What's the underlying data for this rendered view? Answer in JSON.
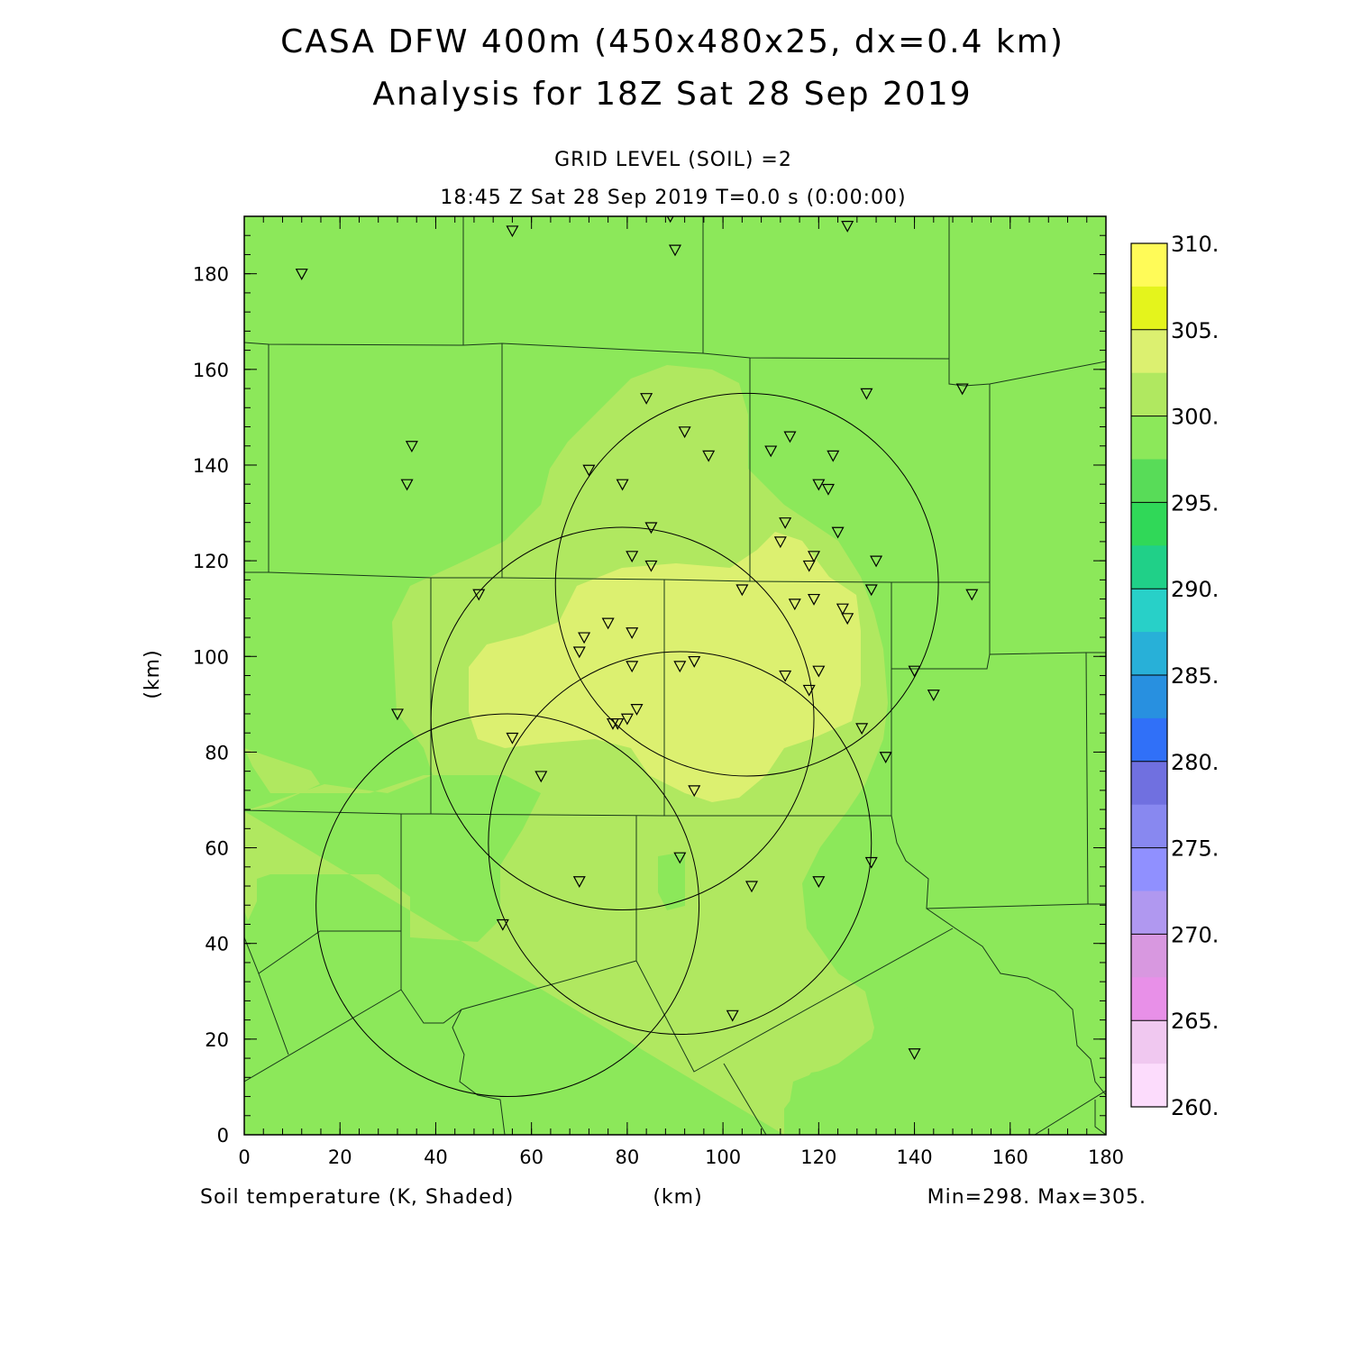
{
  "header": {
    "title_line1": "CASA DFW 400m (450x480x25, dx=0.4 km)",
    "title_line2": "Analysis for 18Z Sat 28 Sep 2019",
    "level": "GRID LEVEL (SOIL) =2",
    "time": "18:45 Z Sat 28 Sep 2019    T=0.0 s (0:00:00)"
  },
  "footer": {
    "variable": "Soil temperature (K, Shaded)",
    "xunit": "(km)",
    "minmax": "Min=298. Max=305."
  },
  "map": {
    "ylabel": "(km)",
    "xlim": [
      0,
      180
    ],
    "ylim": [
      0,
      192
    ],
    "xticks": [
      0,
      20,
      40,
      60,
      80,
      100,
      120,
      140,
      160,
      180
    ],
    "yticks": [
      0,
      20,
      40,
      60,
      80,
      100,
      120,
      140,
      160,
      180
    ],
    "colors": {
      "c295_300": "#8ce85a",
      "c300_303": "#b0e860",
      "c303_305": "#dcf070"
    },
    "radar_rings": [
      {
        "cx": 105,
        "cy": 115,
        "r": 40
      },
      {
        "cx": 79,
        "cy": 87,
        "r": 40
      },
      {
        "cx": 91,
        "cy": 61,
        "r": 40
      },
      {
        "cx": 55,
        "cy": 48,
        "r": 40
      }
    ],
    "stations": [
      [
        12,
        180
      ],
      [
        56,
        189
      ],
      [
        89,
        192
      ],
      [
        90,
        185
      ],
      [
        126,
        190
      ],
      [
        35,
        144
      ],
      [
        34,
        136
      ],
      [
        84,
        154
      ],
      [
        130,
        155
      ],
      [
        150,
        156
      ],
      [
        92,
        147
      ],
      [
        97,
        142
      ],
      [
        110,
        143
      ],
      [
        114,
        146
      ],
      [
        123,
        142
      ],
      [
        72,
        139
      ],
      [
        79,
        136
      ],
      [
        120,
        136
      ],
      [
        122,
        135
      ],
      [
        85,
        127
      ],
      [
        113,
        128
      ],
      [
        124,
        126
      ],
      [
        112,
        124
      ],
      [
        81,
        121
      ],
      [
        85,
        119
      ],
      [
        119,
        121
      ],
      [
        132,
        120
      ],
      [
        118,
        119
      ],
      [
        49,
        113
      ],
      [
        104,
        114
      ],
      [
        131,
        114
      ],
      [
        152,
        113
      ],
      [
        115,
        111
      ],
      [
        119,
        112
      ],
      [
        125,
        110
      ],
      [
        126,
        108
      ],
      [
        76,
        107
      ],
      [
        81,
        105
      ],
      [
        71,
        104
      ],
      [
        70,
        101
      ],
      [
        94,
        99
      ],
      [
        91,
        98
      ],
      [
        81,
        98
      ],
      [
        113,
        96
      ],
      [
        120,
        97
      ],
      [
        140,
        97
      ],
      [
        118,
        93
      ],
      [
        144,
        92
      ],
      [
        32,
        88
      ],
      [
        82,
        89
      ],
      [
        80,
        87
      ],
      [
        77,
        86
      ],
      [
        78,
        86
      ],
      [
        129,
        85
      ],
      [
        56,
        83
      ],
      [
        134,
        79
      ],
      [
        62,
        75
      ],
      [
        94,
        72
      ],
      [
        91,
        58
      ],
      [
        131,
        57
      ],
      [
        70,
        53
      ],
      [
        120,
        53
      ],
      [
        106,
        52
      ],
      [
        54,
        44
      ],
      [
        102,
        25
      ],
      [
        140,
        17
      ]
    ]
  },
  "colorbar": {
    "labels": [
      "310.",
      "305.",
      "300.",
      "295.",
      "290.",
      "285.",
      "280.",
      "275.",
      "270.",
      "265.",
      "260."
    ],
    "colors": [
      "#fffb58",
      "#e4f41c",
      "#dcf070",
      "#b0e860",
      "#8ce85a",
      "#58dc58",
      "#30d858",
      "#20d088",
      "#28d0c8",
      "#28b0d8",
      "#2890e0",
      "#3070f8",
      "#7070e0",
      "#8888f0",
      "#9090ff",
      "#b098f0",
      "#d898e0",
      "#e890e8",
      "#f0c8f0",
      "#fcdcfc"
    ]
  }
}
